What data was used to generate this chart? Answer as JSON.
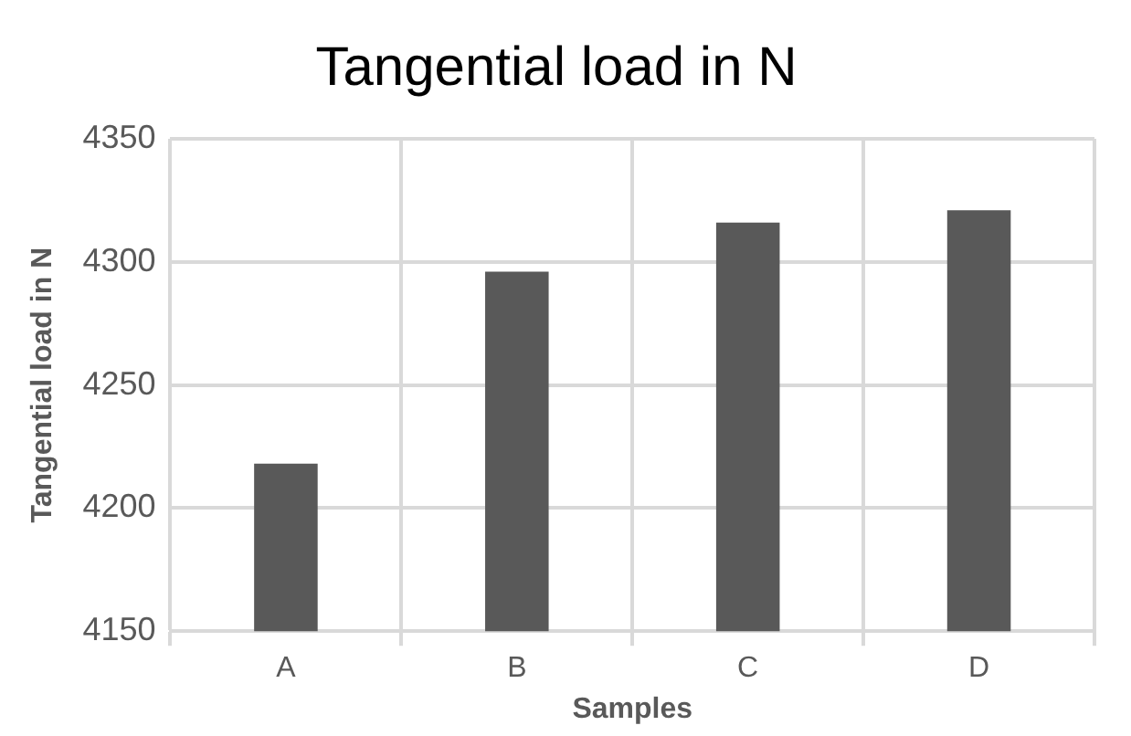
{
  "chart_data": {
    "type": "bar",
    "title": "Tangential load in N",
    "xlabel": "Samples",
    "ylabel": "Tangential load in N",
    "categories": [
      "A",
      "B",
      "C",
      "D"
    ],
    "values": [
      4218,
      4296,
      4316,
      4321
    ],
    "color": "#595959",
    "ylim": [
      4150,
      4350
    ],
    "yticks": [
      4150,
      4200,
      4250,
      4300,
      4350
    ],
    "grid": true
  }
}
